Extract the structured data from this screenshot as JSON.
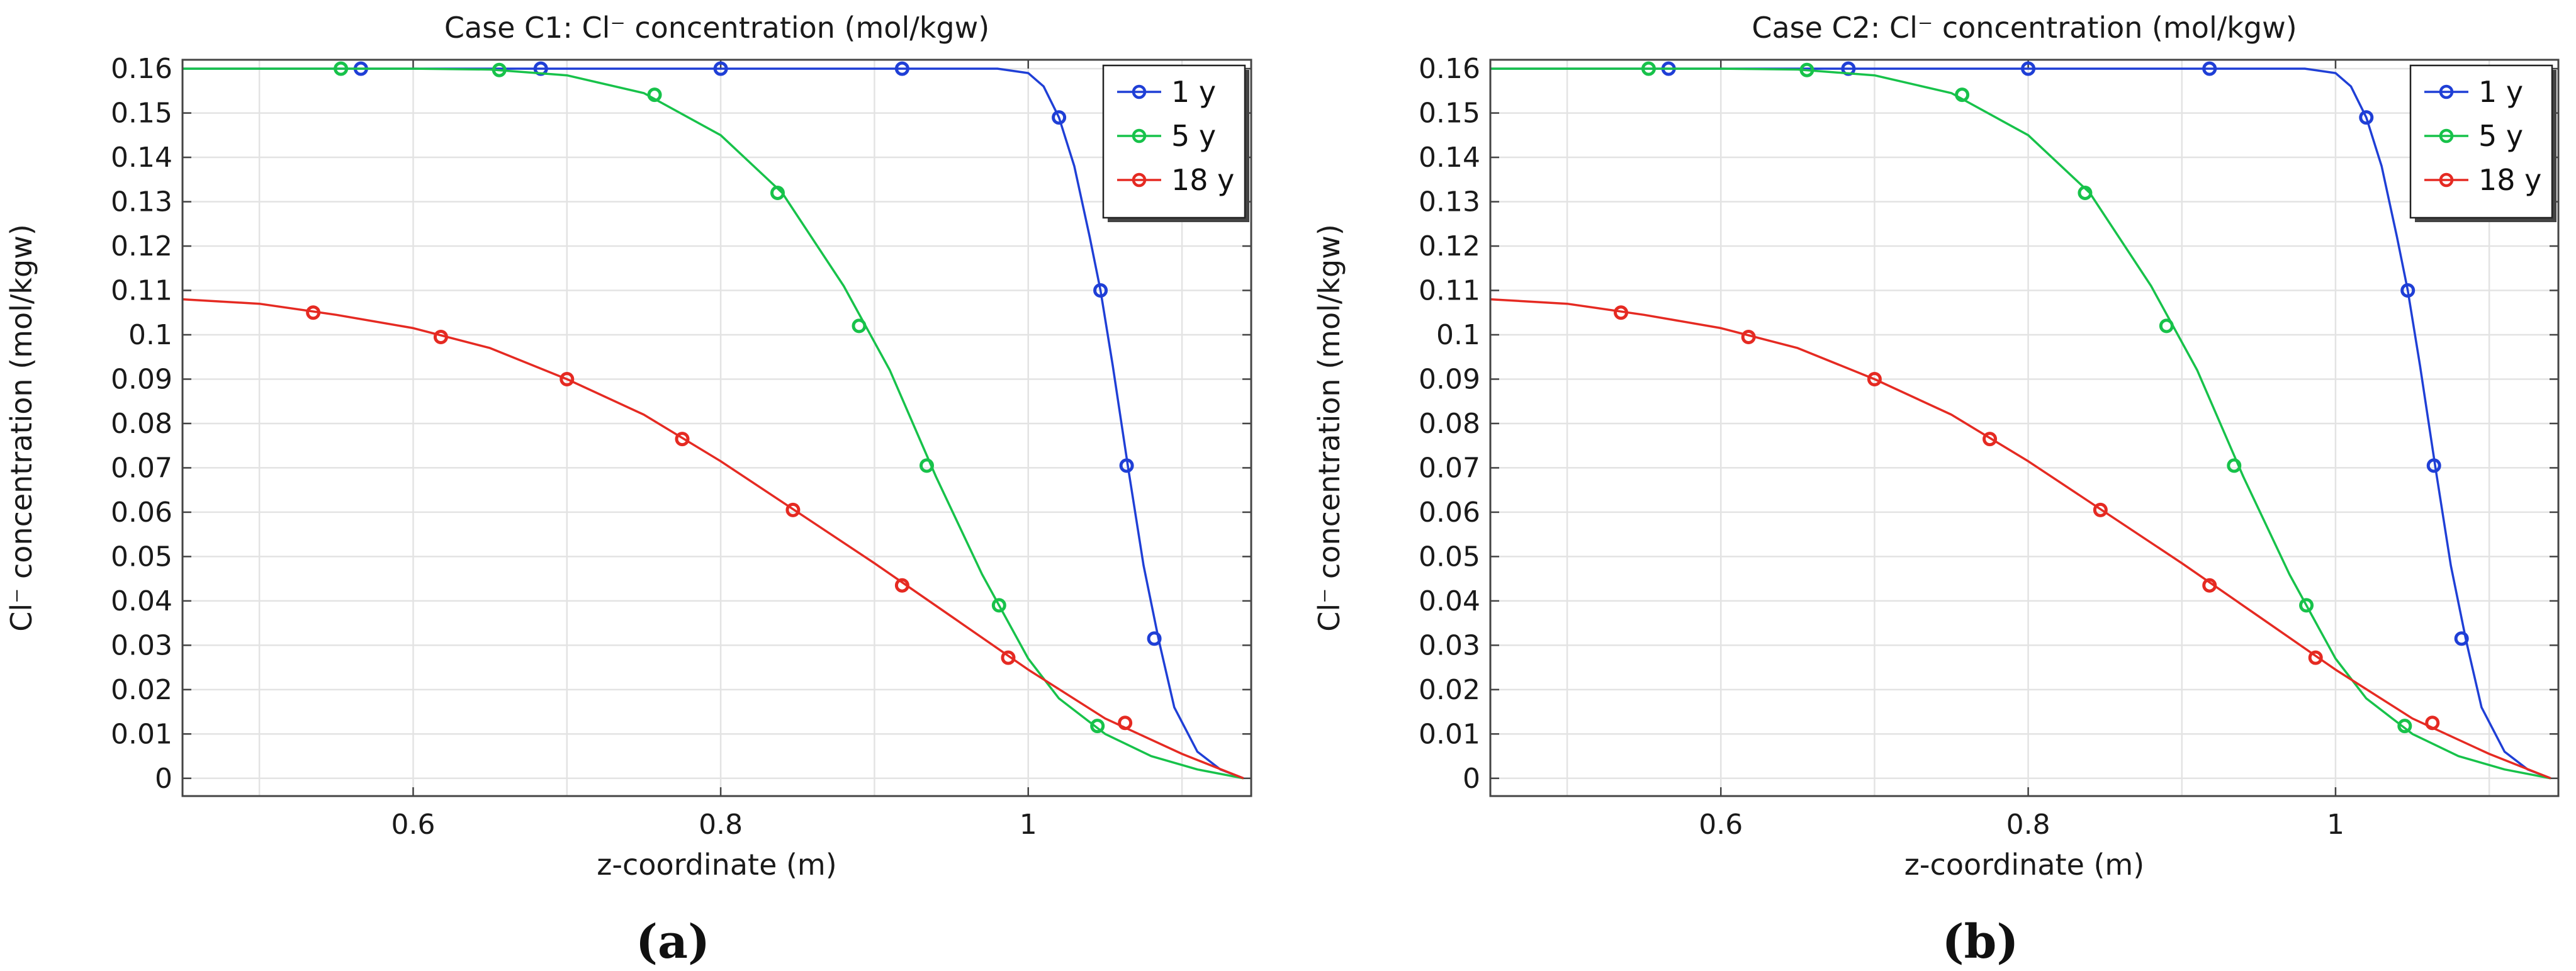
{
  "chart_data": [
    {
      "type": "line",
      "title": "Case C1: Cl⁻ concentration (mol/kgw)",
      "xlabel": "z-coordinate (m)",
      "ylabel": "Cl⁻ concentration (mol/kgw)",
      "xlim": [
        0.45,
        1.145
      ],
      "ylim": [
        -0.004,
        0.162
      ],
      "x_ticks": [
        "0.6",
        "0.8",
        "1"
      ],
      "y_ticks": [
        "0",
        "0.01",
        "0.02",
        "0.03",
        "0.04",
        "0.05",
        "0.06",
        "0.07",
        "0.08",
        "0.09",
        "0.1",
        "0.11",
        "0.12",
        "0.13",
        "0.14",
        "0.15",
        "0.16"
      ],
      "grid": true,
      "legend_position": "top-right",
      "caption": "(a)",
      "series": [
        {
          "name": "1 y",
          "color": "#1f3fd6",
          "x": [
            0.45,
            0.55,
            0.65,
            0.75,
            0.85,
            0.95,
            0.98,
            1.0,
            1.01,
            1.02,
            1.03,
            1.04,
            1.047,
            1.055,
            1.065,
            1.075,
            1.085,
            1.095,
            1.11,
            1.125,
            1.14
          ],
          "y": [
            0.16,
            0.16,
            0.16,
            0.16,
            0.16,
            0.16,
            0.16,
            0.159,
            0.156,
            0.149,
            0.138,
            0.122,
            0.11,
            0.093,
            0.07,
            0.048,
            0.031,
            0.016,
            0.006,
            0.002,
            0.0
          ],
          "markers": {
            "x": [
              0.566,
              0.683,
              0.8,
              0.918,
              1.02,
              1.047,
              1.064,
              1.082
            ],
            "y": [
              0.16,
              0.16,
              0.16,
              0.16,
              0.149,
              0.11,
              0.0705,
              0.0315
            ]
          }
        },
        {
          "name": "5 y",
          "color": "#17c24a",
          "x": [
            0.45,
            0.55,
            0.6,
            0.65,
            0.7,
            0.75,
            0.8,
            0.84,
            0.88,
            0.91,
            0.94,
            0.97,
            1.0,
            1.02,
            1.05,
            1.08,
            1.11,
            1.14
          ],
          "y": [
            0.16,
            0.16,
            0.16,
            0.1598,
            0.1585,
            0.1545,
            0.145,
            0.132,
            0.111,
            0.092,
            0.068,
            0.046,
            0.027,
            0.018,
            0.01,
            0.005,
            0.002,
            0.0
          ],
          "markers": {
            "x": [
              0.553,
              0.656,
              0.757,
              0.837,
              0.89,
              0.934,
              0.981,
              1.045
            ],
            "y": [
              0.16,
              0.1597,
              0.1541,
              0.132,
              0.102,
              0.0705,
              0.039,
              0.0118
            ]
          }
        },
        {
          "name": "18 y",
          "color": "#e52a22",
          "x": [
            0.45,
            0.5,
            0.55,
            0.6,
            0.65,
            0.7,
            0.75,
            0.8,
            0.85,
            0.9,
            0.95,
            1.0,
            1.05,
            1.1,
            1.14
          ],
          "y": [
            0.108,
            0.107,
            0.1045,
            0.1015,
            0.097,
            0.09,
            0.082,
            0.0715,
            0.06,
            0.0485,
            0.0365,
            0.0245,
            0.0135,
            0.0055,
            0.0
          ],
          "markers": {
            "x": [
              0.535,
              0.618,
              0.7,
              0.775,
              0.847,
              0.918,
              0.987,
              1.063
            ],
            "y": [
              0.105,
              0.0995,
              0.09,
              0.0765,
              0.0605,
              0.0435,
              0.0272,
              0.0125
            ]
          }
        }
      ]
    },
    {
      "type": "line",
      "title": "Case C2: Cl⁻ concentration (mol/kgw)",
      "xlabel": "z-coordinate (m)",
      "ylabel": "Cl⁻ concentration (mol/kgw)",
      "xlim": [
        0.45,
        1.145
      ],
      "ylim": [
        -0.004,
        0.162
      ],
      "x_ticks": [
        "0.6",
        "0.8",
        "1"
      ],
      "y_ticks": [
        "0",
        "0.01",
        "0.02",
        "0.03",
        "0.04",
        "0.05",
        "0.06",
        "0.07",
        "0.08",
        "0.09",
        "0.1",
        "0.11",
        "0.12",
        "0.13",
        "0.14",
        "0.15",
        "0.16"
      ],
      "grid": true,
      "legend_position": "top-right",
      "caption": "(b)",
      "series": [
        {
          "name": "1 y",
          "color": "#1f3fd6",
          "x": [
            0.45,
            0.55,
            0.65,
            0.75,
            0.85,
            0.95,
            0.98,
            1.0,
            1.01,
            1.02,
            1.03,
            1.04,
            1.047,
            1.055,
            1.065,
            1.075,
            1.085,
            1.095,
            1.11,
            1.125,
            1.14
          ],
          "y": [
            0.16,
            0.16,
            0.16,
            0.16,
            0.16,
            0.16,
            0.16,
            0.159,
            0.156,
            0.149,
            0.138,
            0.122,
            0.11,
            0.093,
            0.07,
            0.048,
            0.031,
            0.016,
            0.006,
            0.002,
            0.0
          ],
          "markers": {
            "x": [
              0.566,
              0.683,
              0.8,
              0.918,
              1.02,
              1.047,
              1.064,
              1.082
            ],
            "y": [
              0.16,
              0.16,
              0.16,
              0.16,
              0.149,
              0.11,
              0.0705,
              0.0315
            ]
          }
        },
        {
          "name": "5 y",
          "color": "#17c24a",
          "x": [
            0.45,
            0.55,
            0.6,
            0.65,
            0.7,
            0.75,
            0.8,
            0.84,
            0.88,
            0.91,
            0.94,
            0.97,
            1.0,
            1.02,
            1.05,
            1.08,
            1.11,
            1.14
          ],
          "y": [
            0.16,
            0.16,
            0.16,
            0.1598,
            0.1585,
            0.1545,
            0.145,
            0.132,
            0.111,
            0.092,
            0.068,
            0.046,
            0.027,
            0.018,
            0.01,
            0.005,
            0.002,
            0.0
          ],
          "markers": {
            "x": [
              0.553,
              0.656,
              0.757,
              0.837,
              0.89,
              0.934,
              0.981,
              1.045
            ],
            "y": [
              0.16,
              0.1597,
              0.1541,
              0.132,
              0.102,
              0.0705,
              0.039,
              0.0118
            ]
          }
        },
        {
          "name": "18 y",
          "color": "#e52a22",
          "x": [
            0.45,
            0.5,
            0.55,
            0.6,
            0.65,
            0.7,
            0.75,
            0.8,
            0.85,
            0.9,
            0.95,
            1.0,
            1.05,
            1.1,
            1.14
          ],
          "y": [
            0.108,
            0.107,
            0.1045,
            0.1015,
            0.097,
            0.09,
            0.082,
            0.0715,
            0.06,
            0.0485,
            0.0365,
            0.0245,
            0.0135,
            0.0055,
            0.0
          ],
          "markers": {
            "x": [
              0.535,
              0.618,
              0.7,
              0.775,
              0.847,
              0.918,
              0.987,
              1.063
            ],
            "y": [
              0.105,
              0.0995,
              0.09,
              0.0765,
              0.0605,
              0.0435,
              0.0272,
              0.0125
            ]
          }
        }
      ]
    }
  ]
}
